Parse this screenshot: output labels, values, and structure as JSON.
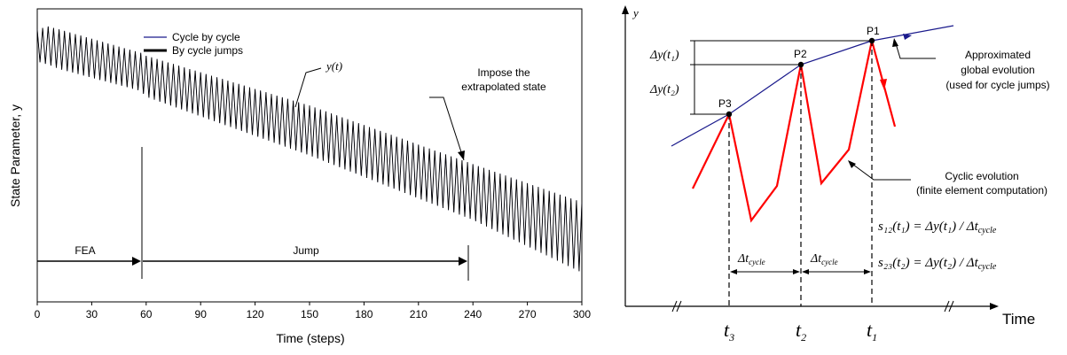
{
  "colors": {
    "cycle_by_cycle": "#1a1a8c",
    "by_cycle_jumps": "#000000",
    "cyclic_evolution": "#ff0000",
    "global_evolution": "#1a1a8c"
  },
  "chart_data": [
    {
      "type": "line",
      "title": "",
      "xlabel": "Time (steps)",
      "ylabel": "State Parameter, y",
      "xlim": [
        0,
        300
      ],
      "xticks": [
        "0",
        "30",
        "60",
        "90",
        "120",
        "150",
        "180",
        "210",
        "240",
        "270",
        "300"
      ],
      "grid": false,
      "legend": {
        "placement": "top-left",
        "entries": [
          "Cycle by cycle",
          "By cycle jumps"
        ]
      },
      "series": [
        {
          "name": "Cycle by cycle",
          "style": "thin blue oscillation",
          "x_range": [
            0,
            300
          ]
        },
        {
          "name": "By cycle jumps",
          "style": "thick black oscillation",
          "x_range": [
            0,
            300
          ]
        }
      ],
      "envelope": {
        "upper": [
          [
            0,
            0.93
          ],
          [
            6,
            0.94
          ],
          [
            12,
            0.93
          ],
          [
            57,
            0.85
          ],
          [
            60,
            0.84
          ],
          [
            150,
            0.67
          ],
          [
            240,
            0.47
          ],
          [
            300,
            0.34
          ]
        ],
        "lower": [
          [
            0,
            0.82
          ],
          [
            6,
            0.81
          ],
          [
            12,
            0.795
          ],
          [
            57,
            0.72
          ],
          [
            60,
            0.7
          ],
          [
            150,
            0.5
          ],
          [
            240,
            0.28
          ],
          [
            300,
            0.1
          ]
        ]
      },
      "annotations": {
        "curve_label": "y(t)",
        "impose_label": [
          "Impose the",
          "extrapolated state"
        ],
        "fea_label": "FEA",
        "jump_label": "Jump",
        "fea_range": [
          0,
          57
        ],
        "jump_range": [
          57,
          237
        ]
      }
    },
    {
      "type": "line",
      "title": "",
      "ylabel": "y",
      "xlabel": "Time",
      "x_ticks": [
        "t3",
        "t2",
        "t1"
      ],
      "points": [
        "P3",
        "P2",
        "P1"
      ],
      "series": [
        {
          "name": "Approximated global evolution",
          "style": "blue line through P3, P2, P1"
        },
        {
          "name": "Cyclic evolution",
          "style": "red zig-zag"
        }
      ],
      "annotations": {
        "global_label": [
          "Approximated",
          "global evolution",
          "(used for cycle jumps)"
        ],
        "cyclic_label": [
          "Cyclic evolution",
          "(finite element computation)"
        ],
        "delta_y1": "Δy(t₁)",
        "delta_y2": "Δy(t₂)",
        "delta_t_cycle": "Δt",
        "delta_t_sub": "cycle",
        "formula_s12": "s₁₂(t₁) = Δy(t₁) / Δt",
        "formula_s23": "s₂₃(t₂) = Δy(t₂) / Δt",
        "formula_sub": "cycle"
      }
    }
  ]
}
